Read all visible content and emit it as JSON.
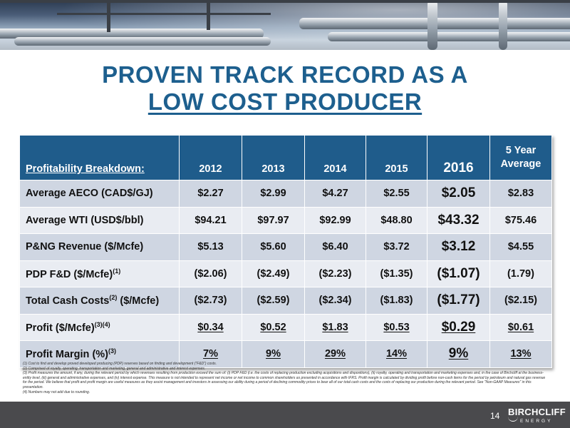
{
  "title": {
    "line1": "PROVEN TRACK RECORD AS A",
    "line2": "LOW COST PRODUCER"
  },
  "table": {
    "header": [
      "Profitability Breakdown:",
      "2012",
      "2013",
      "2014",
      "2015",
      "2016",
      "5 Year",
      "Average"
    ],
    "rows": [
      {
        "label": "Average AECO (CAD$/GJ)",
        "sup": "",
        "label2": "",
        "values": [
          "$2.27",
          "$2.99",
          "$4.27",
          "$2.55",
          "$2.05",
          "$2.83"
        ]
      },
      {
        "label": "Average WTI (USD$/bbl)",
        "sup": "",
        "label2": "",
        "values": [
          "$94.21",
          "$97.97",
          "$92.99",
          "$48.80",
          "$43.32",
          "$75.46"
        ]
      },
      {
        "label": "P&NG Revenue ($/Mcfe)",
        "sup": "",
        "label2": "",
        "values": [
          "$5.13",
          "$5.60",
          "$6.40",
          "$3.72",
          "$3.12",
          "$4.55"
        ]
      },
      {
        "label": "PDP F&D ($/Mcfe)",
        "sup": "(1)",
        "label2": "",
        "values": [
          "($2.06)",
          "($2.49)",
          "($2.23)",
          "($1.35)",
          "($1.07)",
          "(1.79)"
        ]
      },
      {
        "label": "Total Cash Costs",
        "sup": "(2)",
        "label2": " ($/Mcfe)",
        "values": [
          "($2.73)",
          "($2.59)",
          "($2.34)",
          "($1.83)",
          "($1.77)",
          "($2.15)"
        ]
      },
      {
        "label": "Profit ($/Mcfe)",
        "sup": "(3)(4)",
        "label2": "",
        "values": [
          "$0.34",
          "$0.52",
          "$1.83",
          "$0.53",
          "$0.29",
          "$0.61"
        ]
      },
      {
        "label": "Profit Margin (%)",
        "sup": "(3)",
        "label2": "",
        "values": [
          "7%",
          "9%",
          "29%",
          "14%",
          "9%",
          "13%"
        ]
      }
    ]
  },
  "footnotes": [
    "(1) Cost to find and develop proved developed producing (PDP) reserves based on finding and development (\"F&D\") costs.",
    "(2) Comprised of royalty, operating, transportation and marketing, general and administrative and interest expenses.",
    "(3) Profit measures the amount, if any, during the relevant period by which revenues resulting from production exceed the sum of: (i) PDP F&D (i.e. the costs of replacing production excluding acquisitions and dispositions), (ii) royalty, operating and transportation and marketing expenses and, in the case of Birchcliff at the business-entity level, (iii) general and administrative expenses, and (iv) interest expense. This measure is not intended to represent net income or net income to common shareholders as presented in accordance with IFRS. Profit margin is calculated by dividing profit before non-cash items for the period by petroleum and natural gas revenue for the period. We believe that profit and profit margin are useful measures as they assist management and investors in assessing our ability during a period of declining commodity prices to bear all of our total cash costs and the costs of replacing our production during the relevant period. See \"Non-GAAP Measures\" in this presentation.",
    "(4) Numbers may not add due to rounding."
  ],
  "page_number": "14",
  "logo": {
    "name": "BIRCHCLIFF",
    "sub": "ENERGY"
  },
  "colors": {
    "title": "#1d5f8e",
    "header_bg": "#1f5c8b",
    "row_odd": "#cfd6e2",
    "row_even": "#e9ecf2",
    "bottom_bar": "#4a4a4d"
  }
}
